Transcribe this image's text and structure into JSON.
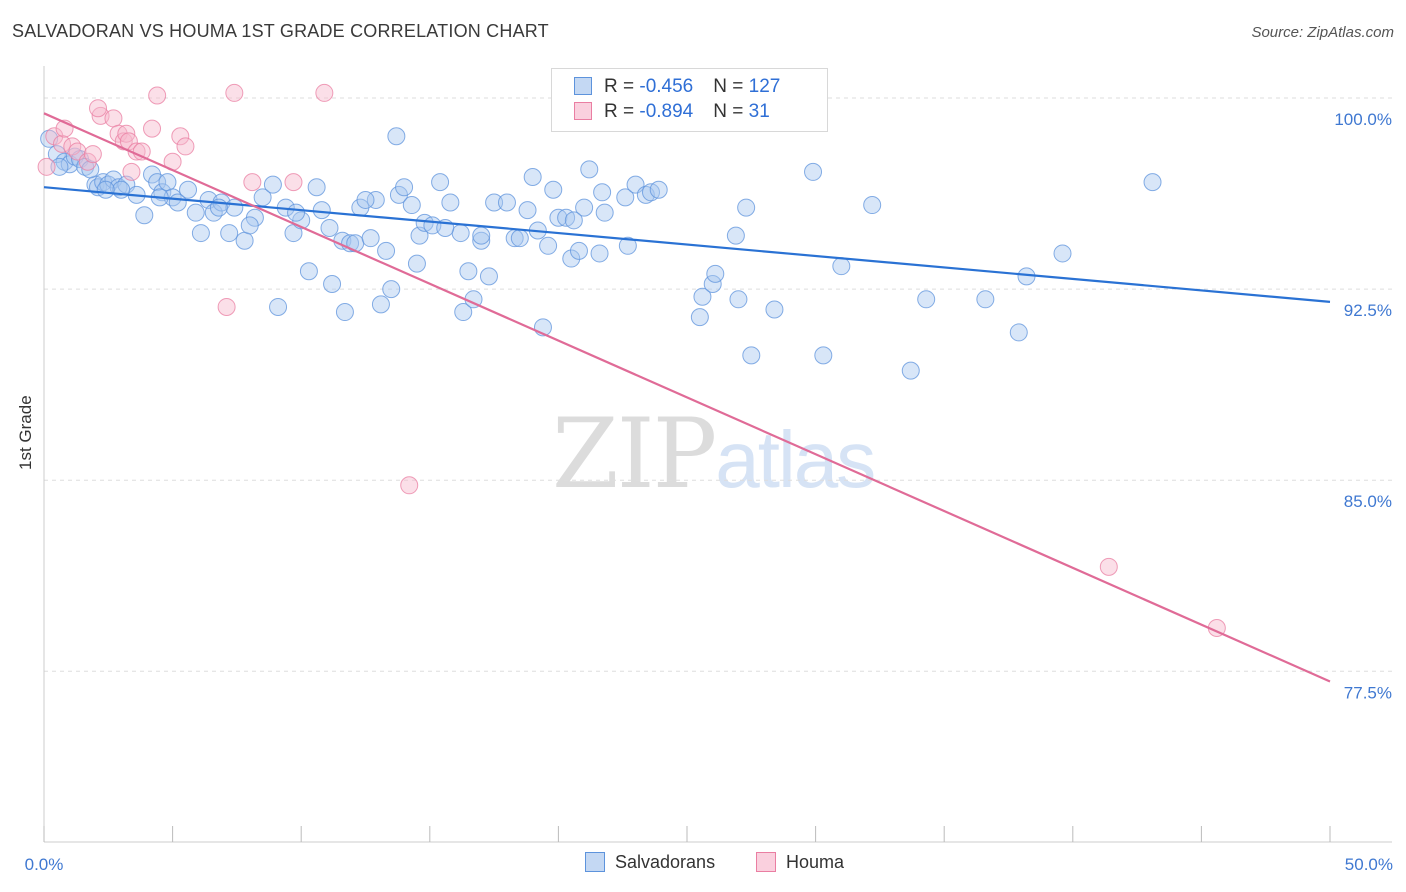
{
  "header": {
    "title": "SALVADORAN VS HOUMA 1ST GRADE CORRELATION CHART",
    "source": "Source: ZipAtlas.com"
  },
  "watermark": {
    "zip": "ZIP",
    "atlas": "atlas"
  },
  "legend": {
    "rows": [
      {
        "r_label": "R = ",
        "r_value": "-0.456",
        "n_label": "N = ",
        "n_value": "127",
        "color": "#a9c7ef"
      },
      {
        "r_label": "R = ",
        "r_value": "-0.894",
        "n_label": "N = ",
        "n_value": "31",
        "color": "#f6b8cc"
      }
    ]
  },
  "bottom_legend": {
    "salvadorans": "Salvadorans",
    "houma": "Houma"
  },
  "colors": {
    "salvadoran_fill": "#a9c7ef",
    "salvadoran_stroke": "#5d93dc",
    "salvadoran_line": "#2a72d4",
    "houma_fill": "#f6b8cc",
    "houma_stroke": "#ea7ea2",
    "houma_line": "#e06b97",
    "tick_label": "#3f78d1",
    "grid": "#dddddd"
  },
  "chart_data": {
    "type": "scatter",
    "title": "SALVADORAN VS HOUMA 1ST GRADE CORRELATION CHART",
    "xlabel": "",
    "ylabel": "1st Grade",
    "xlim": [
      0,
      50
    ],
    "ylim": [
      70,
      101
    ],
    "x_tick_labels": [
      "0.0%",
      "50.0%"
    ],
    "y_ticks": [
      100.0,
      92.5,
      85.0,
      77.5
    ],
    "y_tick_labels": [
      "100.0%",
      "92.5%",
      "85.0%",
      "77.5%"
    ],
    "grid": "horizontal dashed",
    "legend_position": "top-center",
    "series": [
      {
        "name": "Salvadorans",
        "R": -0.456,
        "N": 127,
        "trend": {
          "x": [
            0,
            50
          ],
          "y": [
            96.5,
            92.0
          ]
        },
        "points": [
          [
            0.2,
            98.4
          ],
          [
            0.5,
            97.8
          ],
          [
            0.8,
            97.5
          ],
          [
            1.0,
            97.4
          ],
          [
            1.2,
            97.7
          ],
          [
            1.4,
            97.6
          ],
          [
            1.6,
            97.3
          ],
          [
            2.0,
            96.6
          ],
          [
            2.1,
            96.5
          ],
          [
            2.3,
            96.7
          ],
          [
            2.5,
            96.6
          ],
          [
            2.7,
            96.8
          ],
          [
            2.9,
            96.5
          ],
          [
            3.2,
            96.6
          ],
          [
            3.6,
            96.2
          ],
          [
            3.9,
            95.4
          ],
          [
            4.2,
            97.0
          ],
          [
            4.4,
            96.7
          ],
          [
            4.6,
            96.3
          ],
          [
            4.8,
            96.7
          ],
          [
            5.0,
            96.1
          ],
          [
            5.2,
            95.9
          ],
          [
            5.6,
            96.4
          ],
          [
            5.9,
            95.5
          ],
          [
            6.1,
            94.7
          ],
          [
            6.4,
            96.0
          ],
          [
            6.6,
            95.5
          ],
          [
            6.9,
            95.9
          ],
          [
            7.2,
            94.7
          ],
          [
            7.4,
            95.7
          ],
          [
            7.8,
            94.4
          ],
          [
            8.2,
            95.3
          ],
          [
            8.5,
            96.1
          ],
          [
            8.9,
            96.6
          ],
          [
            9.1,
            91.8
          ],
          [
            9.4,
            95.7
          ],
          [
            9.7,
            94.7
          ],
          [
            10.0,
            95.2
          ],
          [
            10.3,
            93.2
          ],
          [
            10.6,
            96.5
          ],
          [
            10.8,
            95.6
          ],
          [
            11.1,
            94.9
          ],
          [
            11.2,
            92.7
          ],
          [
            11.6,
            94.4
          ],
          [
            11.9,
            94.3
          ],
          [
            11.7,
            91.6
          ],
          [
            12.1,
            94.3
          ],
          [
            12.3,
            95.7
          ],
          [
            12.7,
            94.5
          ],
          [
            12.9,
            96.0
          ],
          [
            13.1,
            91.9
          ],
          [
            13.3,
            94.0
          ],
          [
            13.5,
            92.5
          ],
          [
            13.7,
            98.5
          ],
          [
            13.8,
            96.2
          ],
          [
            14.0,
            96.5
          ],
          [
            14.3,
            95.8
          ],
          [
            14.5,
            93.5
          ],
          [
            14.6,
            94.6
          ],
          [
            14.8,
            95.1
          ],
          [
            15.1,
            95.0
          ],
          [
            15.4,
            96.7
          ],
          [
            15.8,
            95.9
          ],
          [
            16.2,
            94.7
          ],
          [
            16.3,
            91.6
          ],
          [
            16.5,
            93.2
          ],
          [
            16.7,
            92.1
          ],
          [
            17.0,
            94.4
          ],
          [
            17.0,
            94.6
          ],
          [
            17.3,
            93.0
          ],
          [
            17.5,
            95.9
          ],
          [
            18.0,
            95.9
          ],
          [
            18.3,
            94.5
          ],
          [
            18.5,
            94.5
          ],
          [
            18.8,
            95.6
          ],
          [
            19.0,
            96.9
          ],
          [
            19.2,
            94.8
          ],
          [
            19.4,
            91.0
          ],
          [
            19.6,
            94.2
          ],
          [
            19.8,
            96.4
          ],
          [
            20.0,
            95.3
          ],
          [
            20.3,
            95.3
          ],
          [
            20.5,
            93.7
          ],
          [
            20.8,
            94.0
          ],
          [
            21.0,
            95.7
          ],
          [
            21.2,
            97.2
          ],
          [
            21.6,
            93.9
          ],
          [
            21.7,
            96.3
          ],
          [
            21.8,
            95.5
          ],
          [
            22.6,
            96.1
          ],
          [
            22.7,
            94.2
          ],
          [
            23.0,
            96.6
          ],
          [
            23.4,
            96.2
          ],
          [
            23.6,
            96.3
          ],
          [
            23.9,
            96.4
          ],
          [
            25.0,
            100.1
          ],
          [
            25.5,
            91.4
          ],
          [
            25.6,
            92.2
          ],
          [
            26.0,
            92.7
          ],
          [
            26.1,
            93.1
          ],
          [
            26.9,
            94.6
          ],
          [
            27.0,
            92.1
          ],
          [
            27.3,
            95.7
          ],
          [
            27.5,
            89.9
          ],
          [
            28.4,
            91.7
          ],
          [
            29.9,
            97.1
          ],
          [
            30.3,
            89.9
          ],
          [
            31.0,
            93.4
          ],
          [
            32.2,
            95.8
          ],
          [
            33.7,
            89.3
          ],
          [
            34.3,
            92.1
          ],
          [
            36.6,
            92.1
          ],
          [
            37.9,
            90.8
          ],
          [
            38.2,
            93.0
          ],
          [
            39.6,
            93.9
          ],
          [
            43.1,
            96.7
          ],
          [
            0.6,
            97.3
          ],
          [
            1.8,
            97.2
          ],
          [
            3.0,
            96.4
          ],
          [
            8.0,
            95.0
          ],
          [
            9.8,
            95.5
          ],
          [
            15.6,
            94.9
          ],
          [
            6.8,
            95.7
          ],
          [
            2.4,
            96.4
          ],
          [
            4.5,
            96.1
          ],
          [
            12.5,
            96.0
          ],
          [
            20.6,
            95.2
          ]
        ]
      },
      {
        "name": "Houma",
        "R": -0.894,
        "N": 31,
        "trend": {
          "x": [
            0,
            50
          ],
          "y": [
            99.4,
            77.1
          ]
        },
        "points": [
          [
            0.1,
            97.3
          ],
          [
            0.4,
            98.5
          ],
          [
            0.7,
            98.2
          ],
          [
            0.8,
            98.8
          ],
          [
            1.1,
            98.1
          ],
          [
            1.3,
            97.9
          ],
          [
            1.7,
            97.5
          ],
          [
            1.9,
            97.8
          ],
          [
            2.2,
            99.3
          ],
          [
            2.1,
            99.6
          ],
          [
            2.7,
            99.2
          ],
          [
            2.9,
            98.6
          ],
          [
            3.1,
            98.3
          ],
          [
            3.2,
            98.6
          ],
          [
            3.3,
            98.3
          ],
          [
            3.4,
            97.1
          ],
          [
            3.6,
            97.9
          ],
          [
            3.8,
            97.9
          ],
          [
            4.2,
            98.8
          ],
          [
            4.4,
            100.1
          ],
          [
            5.0,
            97.5
          ],
          [
            5.3,
            98.5
          ],
          [
            5.5,
            98.1
          ],
          [
            7.1,
            91.8
          ],
          [
            7.4,
            100.2
          ],
          [
            8.1,
            96.7
          ],
          [
            9.7,
            96.7
          ],
          [
            10.9,
            100.2
          ],
          [
            14.2,
            84.8
          ],
          [
            41.4,
            81.6
          ],
          [
            45.6,
            79.2
          ]
        ]
      }
    ]
  }
}
